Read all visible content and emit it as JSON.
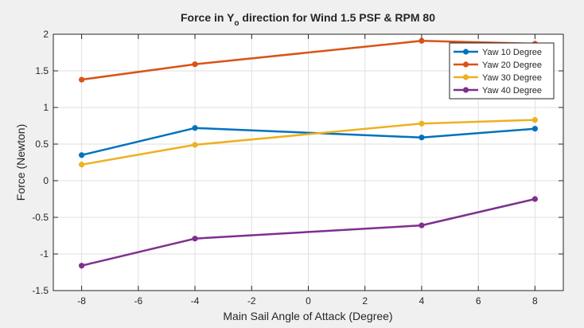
{
  "chart_data": {
    "type": "line",
    "title_parts": [
      "Force in Y",
      "o",
      " direction for Wind 1.5 PSF & RPM 80"
    ],
    "xlabel": "Main Sail Angle of Attack (Degree)",
    "ylabel": "Force (Newton)",
    "xlim": [
      -9,
      9
    ],
    "ylim": [
      -1.5,
      2
    ],
    "xticks": [
      -8,
      -6,
      -4,
      -2,
      0,
      2,
      4,
      6,
      8
    ],
    "yticks": [
      -1.5,
      -1,
      -0.5,
      0,
      0.5,
      1,
      1.5,
      2
    ],
    "grid": true,
    "legend_position": "top-right",
    "x": [
      -8,
      -4,
      4,
      8
    ],
    "series": [
      {
        "name": "Yaw 10 Degree",
        "color": "#0072bd",
        "values": [
          0.35,
          0.72,
          0.59,
          0.71
        ]
      },
      {
        "name": "Yaw 20 Degree",
        "color": "#d95319",
        "values": [
          1.38,
          1.59,
          1.91,
          1.87
        ]
      },
      {
        "name": "Yaw 30 Degree",
        "color": "#edb120",
        "values": [
          0.22,
          0.49,
          0.78,
          0.83
        ]
      },
      {
        "name": "Yaw 40 Degree",
        "color": "#7e2f8e",
        "values": [
          -1.16,
          -0.79,
          -0.61,
          -0.25
        ]
      }
    ]
  }
}
